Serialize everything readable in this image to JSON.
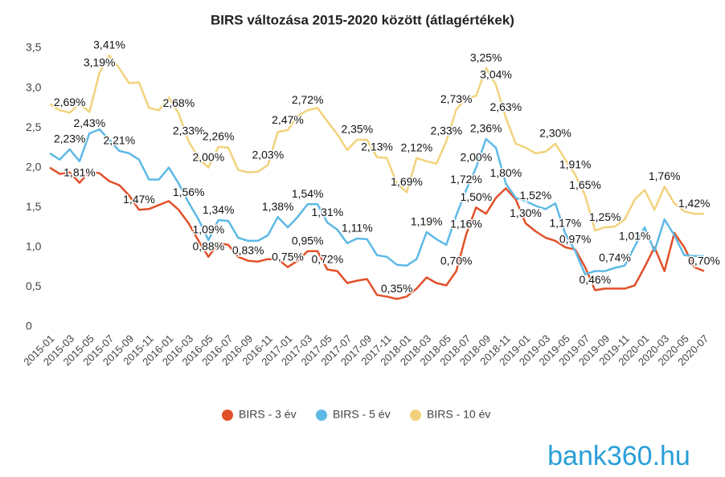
{
  "chart_data": {
    "type": "line",
    "title": "BIRS változása 2015-2020 között (átlagértékek)",
    "categories": [
      "2015-01",
      null,
      "2015-03",
      null,
      "2015-05",
      null,
      "2015-07",
      null,
      "2015-09",
      null,
      "2015-11",
      null,
      "2016-01",
      null,
      "2016-03",
      null,
      "2016-05",
      null,
      "2016-07",
      null,
      "2016-09",
      null,
      "2016-11",
      null,
      "2017-01",
      null,
      "2017-03",
      null,
      "2017-05",
      null,
      "2017-07",
      null,
      "2017-09",
      null,
      "2017-11",
      null,
      "2018-01",
      null,
      "2018-03",
      null,
      "2018-05",
      null,
      "2018-07",
      null,
      "2018-09",
      null,
      "2018-11",
      null,
      "2019-01",
      null,
      "2019-03",
      null,
      "2019-05",
      null,
      "2019-07",
      null,
      "2019-09",
      null,
      "2019-11",
      null,
      "2020-01",
      null,
      "2020-03",
      null,
      "2020-05",
      null,
      "2020-07"
    ],
    "series": [
      {
        "name": "BIRS - 3 év",
        "color": "#e2502a",
        "values": [
          2.0,
          1.92,
          1.94,
          1.81,
          1.95,
          1.93,
          1.83,
          1.78,
          1.65,
          1.47,
          1.48,
          1.53,
          1.58,
          1.47,
          1.3,
          1.08,
          0.88,
          1.05,
          1.03,
          0.88,
          0.83,
          0.82,
          0.85,
          0.85,
          0.75,
          0.83,
          0.95,
          0.95,
          0.72,
          0.7,
          0.55,
          0.58,
          0.6,
          0.4,
          0.38,
          0.35,
          0.38,
          0.48,
          0.62,
          0.55,
          0.52,
          0.7,
          1.16,
          1.5,
          1.42,
          1.62,
          1.74,
          1.6,
          1.3,
          1.2,
          1.12,
          1.08,
          1.0,
          0.97,
          0.75,
          0.46,
          0.48,
          0.48,
          0.48,
          0.52,
          0.75,
          1.0,
          0.7,
          1.18,
          1.0,
          0.75,
          0.7
        ],
        "value_labels": [
          null,
          null,
          null,
          "1,81%",
          null,
          null,
          null,
          null,
          null,
          "1,47%",
          null,
          null,
          null,
          null,
          null,
          null,
          "0,88%",
          null,
          null,
          null,
          "0,83%",
          null,
          null,
          null,
          "0,75%",
          null,
          "0,95%",
          null,
          "0,72%",
          null,
          null,
          null,
          null,
          null,
          null,
          "0,35%",
          null,
          null,
          null,
          null,
          null,
          "0,70%",
          "1,16%",
          "1,50%",
          null,
          null,
          null,
          null,
          "1,30%",
          null,
          null,
          null,
          null,
          "0,97%",
          null,
          "0,46%",
          null,
          null,
          null,
          null,
          null,
          null,
          null,
          null,
          null,
          null,
          "0,70%"
        ]
      },
      {
        "name": "BIRS - 5 év",
        "color": "#5db9e5",
        "values": [
          2.18,
          2.1,
          2.23,
          2.08,
          2.43,
          2.48,
          2.35,
          2.21,
          2.18,
          2.1,
          1.85,
          1.85,
          2.0,
          1.8,
          1.56,
          1.35,
          1.09,
          1.34,
          1.33,
          1.12,
          1.08,
          1.08,
          1.15,
          1.38,
          1.25,
          1.38,
          1.54,
          1.54,
          1.31,
          1.22,
          1.05,
          1.11,
          1.1,
          0.9,
          0.88,
          0.78,
          0.77,
          0.85,
          1.19,
          1.1,
          1.03,
          1.4,
          1.72,
          2.0,
          2.36,
          2.25,
          1.8,
          1.62,
          1.58,
          1.52,
          1.48,
          1.55,
          1.17,
          0.95,
          0.66,
          0.7,
          0.7,
          0.74,
          0.77,
          1.01,
          1.25,
          0.95,
          1.35,
          1.15,
          0.9,
          0.89,
          0.89
        ],
        "value_labels": [
          null,
          null,
          "2,23%",
          null,
          "2,43%",
          null,
          null,
          "2,21%",
          null,
          null,
          null,
          null,
          null,
          null,
          "1,56%",
          null,
          "1,09%",
          "1,34%",
          null,
          null,
          null,
          null,
          null,
          "1,38%",
          null,
          null,
          "1,54%",
          null,
          "1,31%",
          null,
          null,
          "1,11%",
          null,
          null,
          null,
          null,
          null,
          null,
          "1,19%",
          null,
          null,
          null,
          "1,72%",
          "2,00%",
          "2,36%",
          null,
          "1,80%",
          null,
          null,
          "1,52%",
          null,
          null,
          "1,17%",
          null,
          null,
          null,
          null,
          "0,74%",
          null,
          "1,01%",
          null,
          null,
          null,
          null,
          null,
          null,
          null
        ]
      },
      {
        "name": "BIRS - 10 év",
        "color": "#f2d27c",
        "values": [
          2.8,
          2.72,
          2.69,
          2.8,
          2.7,
          3.19,
          3.41,
          3.25,
          3.06,
          3.07,
          2.75,
          2.72,
          2.88,
          2.68,
          2.33,
          2.12,
          2.0,
          2.26,
          2.25,
          1.97,
          1.94,
          1.95,
          2.03,
          2.45,
          2.47,
          2.65,
          2.72,
          2.75,
          2.58,
          2.42,
          2.22,
          2.35,
          2.35,
          2.13,
          2.12,
          1.8,
          1.69,
          2.12,
          2.08,
          2.05,
          2.33,
          2.73,
          2.87,
          2.9,
          3.25,
          3.04,
          2.63,
          2.3,
          2.25,
          2.18,
          2.2,
          2.3,
          2.1,
          1.91,
          1.65,
          1.21,
          1.25,
          1.26,
          1.35,
          1.6,
          1.72,
          1.47,
          1.76,
          1.55,
          1.45,
          1.42,
          1.42
        ],
        "value_labels": [
          null,
          null,
          "2,69%",
          null,
          null,
          "3,19%",
          "3,41%",
          null,
          null,
          null,
          null,
          null,
          null,
          "2,68%",
          "2,33%",
          null,
          "2,00%",
          "2,26%",
          null,
          null,
          null,
          null,
          "2,03%",
          null,
          "2,47%",
          null,
          "2,72%",
          null,
          null,
          null,
          null,
          "2,35%",
          null,
          "2,13%",
          null,
          null,
          "1,69%",
          "2,12%",
          null,
          null,
          "2,33%",
          "2,73%",
          null,
          null,
          "3,25%",
          "3,04%",
          "2,63%",
          null,
          null,
          null,
          null,
          "2,30%",
          null,
          "1,91%",
          "1,65%",
          null,
          "1,25%",
          null,
          null,
          null,
          null,
          null,
          "1,76%",
          null,
          null,
          "1,42%",
          null
        ]
      }
    ],
    "ylim": [
      0,
      3.5
    ],
    "yticks": [
      0,
      {
        "value": 0.5,
        "label": "0,5"
      },
      {
        "value": 1,
        "label": "1,0"
      },
      {
        "value": 1.5,
        "label": "1,5"
      },
      {
        "value": 2,
        "label": "2,0"
      },
      {
        "value": 2.5,
        "label": "2,5"
      },
      {
        "value": 3,
        "label": "3,0"
      },
      {
        "value": 3.5,
        "label": "3,5"
      }
    ],
    "grid": false,
    "legend": "bottom"
  },
  "logo": "bank360.hu"
}
